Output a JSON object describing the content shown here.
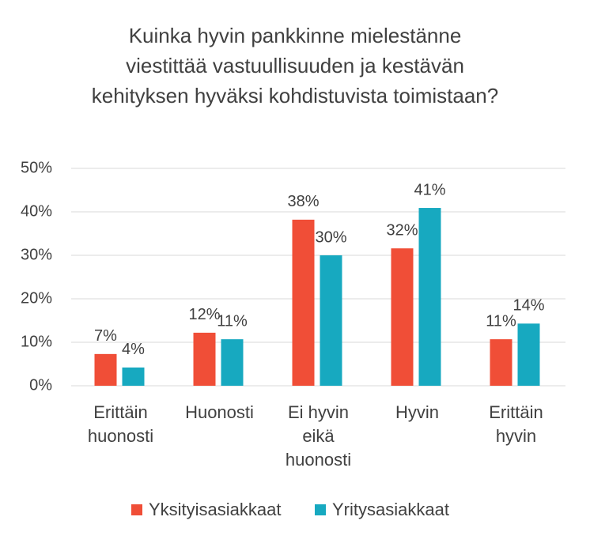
{
  "chart_data": {
    "type": "bar",
    "title": "Kuinka hyvin pankkinne mielestänne viestittää vastuullisuuden ja kestävän kehityksen hyväksi kohdistuvista toimistaan?",
    "categories": [
      "Erittäin huonosti",
      "Huonosti",
      "Ei hyvin eikä huonosti",
      "Hyvin",
      "Erittäin hyvin"
    ],
    "series": [
      {
        "name": "Yksityisasiakkaat",
        "color": "#f04e37",
        "values": [
          7.3,
          12.2,
          38.2,
          31.6,
          10.7
        ],
        "value_labels": [
          "7%",
          "12%",
          "38%",
          "32%",
          "11%"
        ]
      },
      {
        "name": "Yritysasiakkaat",
        "color": "#17a9c0",
        "values": [
          4.2,
          10.7,
          30,
          40.9,
          14.3
        ],
        "value_labels": [
          "4%",
          "11%",
          "30%",
          "41%",
          "14%"
        ]
      }
    ],
    "ylim": [
      0,
      50
    ],
    "yticks": [
      {
        "value": 0,
        "label": "0%"
      },
      {
        "value": 10,
        "label": "10%"
      },
      {
        "value": 20,
        "label": "20%"
      },
      {
        "value": 30,
        "label": "30%"
      },
      {
        "value": 40,
        "label": "40%"
      },
      {
        "value": 50,
        "label": "50%"
      }
    ],
    "grid": true,
    "legend": "bottom"
  }
}
